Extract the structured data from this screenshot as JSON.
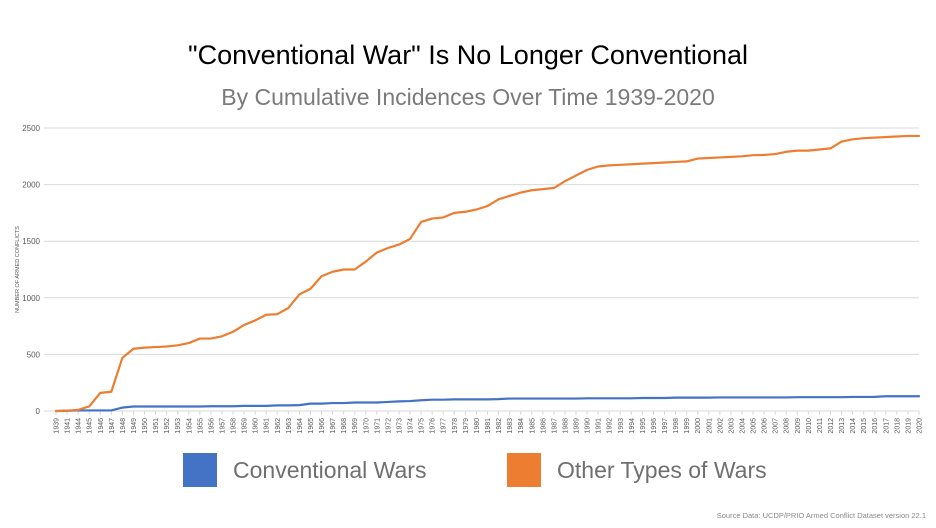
{
  "title": "\"Conventional War\" Is No Longer Conventional",
  "subtitle": "By Cumulative Incidences Over Time 1939-2020",
  "source": "Source Data: UCDP/PRIO Armed Conflict Dataset version 22.1",
  "colors": {
    "conventional": "#4472c4",
    "other": "#ed7d31",
    "grid": "#d9d9d9",
    "axis_text": "#595959"
  },
  "chart_data": {
    "type": "line",
    "title": "\"Conventional War\" Is No Longer Conventional",
    "subtitle": "By Cumulative Incidences Over Time 1939-2020",
    "xlabel": "",
    "ylabel": "NUMBER OF ARMED CONFLICTS",
    "ylim": [
      0,
      2500
    ],
    "yticks": [
      0,
      500,
      1000,
      1500,
      2000,
      2500
    ],
    "grid": true,
    "legend_position": "bottom",
    "x": [
      "1939",
      "1941",
      "1944",
      "1945",
      "1946",
      "1947",
      "1948",
      "1949",
      "1950",
      "1951",
      "1952",
      "1953",
      "1954",
      "1955",
      "1956",
      "1957",
      "1958",
      "1959",
      "1960",
      "1961",
      "1962",
      "1963",
      "1964",
      "1965",
      "1966",
      "1967",
      "1968",
      "1969",
      "1970",
      "1971",
      "1972",
      "1973",
      "1974",
      "1975",
      "1976",
      "1977",
      "1978",
      "1979",
      "1980",
      "1981",
      "1982",
      "1983",
      "1984",
      "1985",
      "1986",
      "1987",
      "1988",
      "1989",
      "1990",
      "1991",
      "1992",
      "1993",
      "1994",
      "1995",
      "1996",
      "1997",
      "1998",
      "1999",
      "2000",
      "2001",
      "2002",
      "2003",
      "2004",
      "2005",
      "2006",
      "2007",
      "2008",
      "2009",
      "2010",
      "2011",
      "2012",
      "2013",
      "2014",
      "2015",
      "2016",
      "2017",
      "2018",
      "2019",
      "2020"
    ],
    "series": [
      {
        "name": "Conventional Wars",
        "color": "#4472c4",
        "values": [
          0,
          2,
          5,
          5,
          5,
          5,
          30,
          40,
          40,
          40,
          40,
          40,
          40,
          40,
          42,
          42,
          42,
          45,
          45,
          45,
          50,
          50,
          52,
          65,
          65,
          70,
          70,
          75,
          75,
          75,
          80,
          85,
          88,
          95,
          100,
          100,
          103,
          103,
          103,
          103,
          105,
          110,
          110,
          110,
          110,
          110,
          110,
          110,
          112,
          112,
          112,
          112,
          112,
          115,
          115,
          115,
          118,
          118,
          118,
          118,
          120,
          120,
          120,
          120,
          120,
          120,
          120,
          122,
          122,
          122,
          122,
          122,
          124,
          124,
          125,
          130,
          130,
          130,
          130
        ]
      },
      {
        "name": "Other Types of Wars",
        "color": "#ed7d31",
        "values": [
          0,
          3,
          10,
          40,
          160,
          170,
          470,
          550,
          560,
          565,
          570,
          580,
          600,
          640,
          640,
          660,
          700,
          760,
          800,
          850,
          855,
          910,
          1030,
          1080,
          1190,
          1230,
          1250,
          1250,
          1320,
          1400,
          1440,
          1470,
          1520,
          1670,
          1700,
          1710,
          1750,
          1760,
          1780,
          1810,
          1870,
          1900,
          1930,
          1950,
          1960,
          1970,
          2030,
          2080,
          2130,
          2160,
          2170,
          2175,
          2180,
          2185,
          2190,
          2195,
          2200,
          2205,
          2230,
          2235,
          2240,
          2245,
          2250,
          2260,
          2262,
          2270,
          2290,
          2300,
          2300,
          2310,
          2320,
          2380,
          2400,
          2410,
          2415,
          2420,
          2425,
          2430,
          2430
        ]
      }
    ]
  }
}
